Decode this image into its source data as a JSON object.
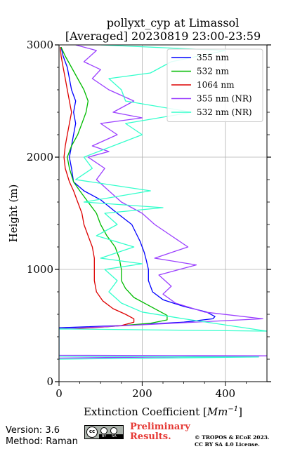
{
  "chart_data": {
    "type": "line",
    "title": "pollyxt_cyp at Limassol",
    "subtitle": "[Averaged] 20230819 23:00-23:59",
    "xlabel": "Extinction Coefficient [Mm^-1]",
    "xlabel_base": "Extinction Coefficient [",
    "xlabel_unit": "Mm",
    "xlabel_exp": "−1",
    "xlabel_close": "]",
    "ylabel": "Height (m)",
    "xlim": [
      0,
      500
    ],
    "ylim": [
      0,
      3000
    ],
    "xticks": [
      0,
      200,
      400
    ],
    "yticks": [
      0,
      1000,
      2000,
      3000
    ],
    "grid": true,
    "legend_position": "top-right",
    "series": [
      {
        "name": "355 nm",
        "color": "#0000ff",
        "points": [
          [
            0,
            480
          ],
          [
            150,
            500
          ],
          [
            300,
            530
          ],
          [
            370,
            560
          ],
          [
            375,
            580
          ],
          [
            355,
            620
          ],
          [
            300,
            670
          ],
          [
            250,
            730
          ],
          [
            225,
            800
          ],
          [
            215,
            900
          ],
          [
            215,
            1000
          ],
          [
            210,
            1080
          ],
          [
            205,
            1150
          ],
          [
            195,
            1250
          ],
          [
            175,
            1400
          ],
          [
            140,
            1500
          ],
          [
            100,
            1620
          ],
          [
            60,
            1700
          ],
          [
            35,
            1780
          ],
          [
            30,
            1900
          ],
          [
            25,
            2000
          ],
          [
            30,
            2100
          ],
          [
            35,
            2200
          ],
          [
            40,
            2300
          ],
          [
            35,
            2400
          ],
          [
            40,
            2500
          ],
          [
            30,
            2600
          ],
          [
            25,
            2700
          ],
          [
            20,
            2800
          ],
          [
            10,
            2900
          ],
          [
            5,
            2980
          ]
        ]
      },
      {
        "name": "532 nm",
        "color": "#00bb00",
        "points": [
          [
            0,
            470
          ],
          [
            120,
            490
          ],
          [
            220,
            520
          ],
          [
            260,
            550
          ],
          [
            260,
            590
          ],
          [
            240,
            630
          ],
          [
            210,
            690
          ],
          [
            180,
            750
          ],
          [
            160,
            830
          ],
          [
            150,
            900
          ],
          [
            150,
            1000
          ],
          [
            145,
            1100
          ],
          [
            135,
            1200
          ],
          [
            115,
            1300
          ],
          [
            100,
            1400
          ],
          [
            90,
            1500
          ],
          [
            70,
            1600
          ],
          [
            50,
            1700
          ],
          [
            35,
            1780
          ],
          [
            25,
            1900
          ],
          [
            20,
            2000
          ],
          [
            30,
            2100
          ],
          [
            45,
            2200
          ],
          [
            55,
            2300
          ],
          [
            65,
            2400
          ],
          [
            70,
            2500
          ],
          [
            60,
            2600
          ],
          [
            45,
            2700
          ],
          [
            30,
            2800
          ],
          [
            15,
            2900
          ],
          [
            5,
            2980
          ]
        ]
      },
      {
        "name": "1064 nm",
        "color": "#dd0000",
        "points": [
          [
            0,
            470
          ],
          [
            80,
            480
          ],
          [
            150,
            500
          ],
          [
            180,
            530
          ],
          [
            180,
            560
          ],
          [
            160,
            600
          ],
          [
            130,
            650
          ],
          [
            105,
            720
          ],
          [
            90,
            800
          ],
          [
            85,
            900
          ],
          [
            85,
            1000
          ],
          [
            85,
            1100
          ],
          [
            80,
            1200
          ],
          [
            70,
            1300
          ],
          [
            60,
            1400
          ],
          [
            55,
            1500
          ],
          [
            45,
            1600
          ],
          [
            35,
            1700
          ],
          [
            25,
            1780
          ],
          [
            15,
            1900
          ],
          [
            12,
            2000
          ],
          [
            15,
            2100
          ],
          [
            20,
            2200
          ],
          [
            25,
            2300
          ],
          [
            30,
            2400
          ],
          [
            25,
            2500
          ],
          [
            20,
            2600
          ],
          [
            15,
            2700
          ],
          [
            10,
            2800
          ],
          [
            5,
            2900
          ],
          [
            3,
            2980
          ]
        ]
      },
      {
        "name": "355 nm (NR)",
        "color": "#9b3fff",
        "points": [
          [
            0,
            210
          ],
          [
            500,
            230
          ],
          [
            0,
            235
          ],
          [
            0,
            470
          ],
          [
            490,
            560
          ],
          [
            350,
            620
          ],
          [
            280,
            700
          ],
          [
            250,
            780
          ],
          [
            270,
            850
          ],
          [
            240,
            950
          ],
          [
            330,
            1040
          ],
          [
            230,
            1100
          ],
          [
            310,
            1200
          ],
          [
            270,
            1300
          ],
          [
            230,
            1400
          ],
          [
            200,
            1500
          ],
          [
            150,
            1600
          ],
          [
            120,
            1700
          ],
          [
            90,
            1800
          ],
          [
            110,
            1900
          ],
          [
            70,
            2000
          ],
          [
            120,
            2050
          ],
          [
            80,
            2100
          ],
          [
            140,
            2200
          ],
          [
            100,
            2300
          ],
          [
            200,
            2350
          ],
          [
            130,
            2400
          ],
          [
            180,
            2500
          ],
          [
            120,
            2600
          ],
          [
            80,
            2700
          ],
          [
            100,
            2780
          ],
          [
            60,
            2850
          ],
          [
            90,
            2950
          ],
          [
            40,
            3000
          ]
        ]
      },
      {
        "name": "532 nm (NR)",
        "color": "#33ffcc",
        "points": [
          [
            0,
            200
          ],
          [
            480,
            220
          ],
          [
            0,
            225
          ],
          [
            0,
            470
          ],
          [
            500,
            450
          ],
          [
            300,
            560
          ],
          [
            200,
            620
          ],
          [
            150,
            700
          ],
          [
            120,
            800
          ],
          [
            140,
            900
          ],
          [
            110,
            1000
          ],
          [
            200,
            1050
          ],
          [
            100,
            1100
          ],
          [
            180,
            1200
          ],
          [
            90,
            1300
          ],
          [
            140,
            1400
          ],
          [
            110,
            1500
          ],
          [
            250,
            1550
          ],
          [
            60,
            1600
          ],
          [
            220,
            1700
          ],
          [
            40,
            1800
          ],
          [
            80,
            1900
          ],
          [
            60,
            2000
          ],
          [
            200,
            2200
          ],
          [
            160,
            2300
          ],
          [
            320,
            2400
          ],
          [
            160,
            2500
          ],
          [
            150,
            2600
          ],
          [
            120,
            2700
          ],
          [
            220,
            2750
          ],
          [
            270,
            2850
          ],
          [
            400,
            2950
          ],
          [
            100,
            3000
          ]
        ]
      }
    ]
  },
  "footer": {
    "version": "Version: 3.6",
    "method": "Method: Raman",
    "cc_label": "cc",
    "cc_strip_by": "BY",
    "cc_strip_sa": "SA",
    "preliminary_1": "Preliminary",
    "preliminary_2": "Results.",
    "copyright_1": "© TROPOS & ECoE 2023.",
    "copyright_2": "CC BY SA 4.0 License."
  }
}
